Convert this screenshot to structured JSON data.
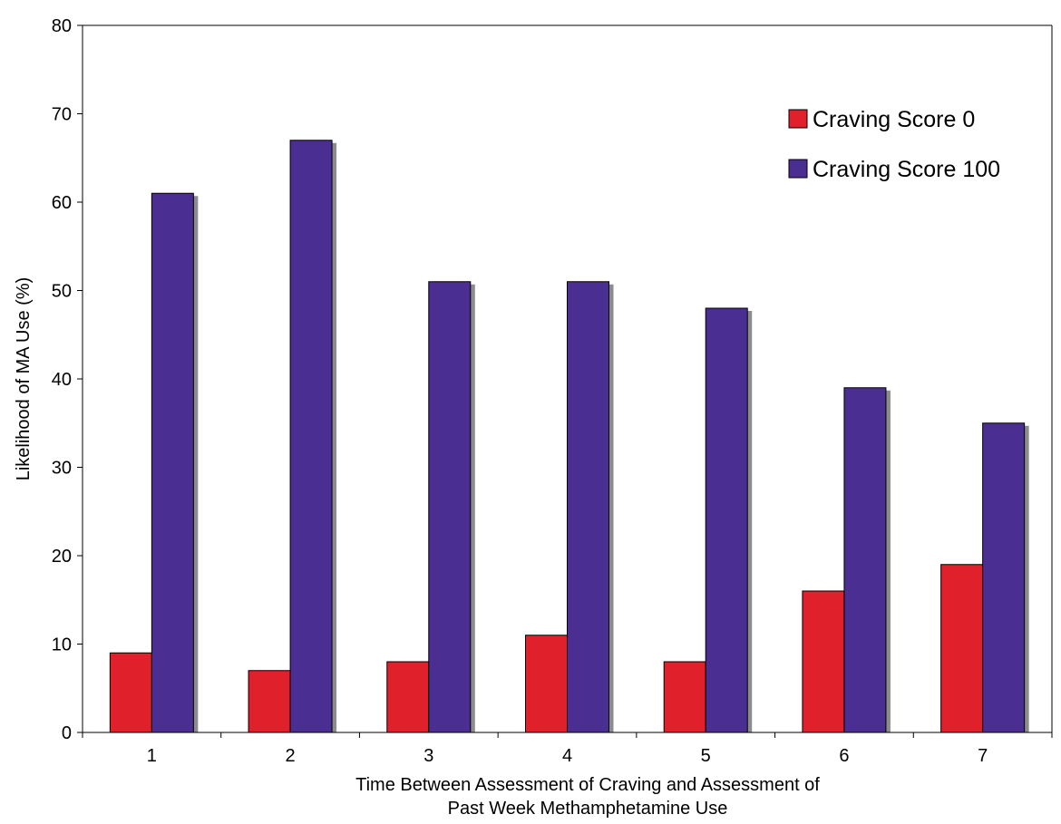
{
  "chart_data": {
    "type": "bar",
    "categories": [
      "1",
      "2",
      "3",
      "4",
      "5",
      "6",
      "7"
    ],
    "series": [
      {
        "name": "Craving Score 0",
        "values": [
          9,
          7,
          8,
          11,
          8,
          16,
          19
        ],
        "color": "#e0202a"
      },
      {
        "name": "Craving Score 100",
        "values": [
          61,
          67,
          51,
          51,
          48,
          39,
          35
        ],
        "color": "#4b2e91"
      }
    ],
    "title": "",
    "xlabel_lines": [
      "Time Between Assessment of Craving and Assessment of",
      "Past Week Methamphetamine Use"
    ],
    "ylabel": "Likelihood of MA Use  (%)",
    "ylim": [
      0,
      80
    ],
    "yticks": [
      0,
      10,
      20,
      30,
      40,
      50,
      60,
      70,
      80
    ],
    "grid": false,
    "legend_position": "top-right",
    "shadow_color": "#8c8c8c"
  }
}
